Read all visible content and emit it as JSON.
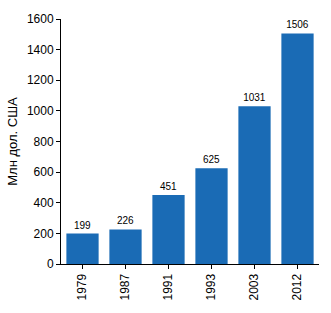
{
  "chart_data": {
    "type": "bar",
    "y_label": "Млн дол. США",
    "categories": [
      "1979",
      "1987",
      "1991",
      "1993",
      "2003",
      "2012"
    ],
    "values": [
      199,
      226,
      451,
      625,
      1031,
      1506
    ],
    "color": "#1a6bb5",
    "ylim": [
      0,
      1600
    ],
    "yticks": [
      0,
      200,
      400,
      600,
      800,
      1000,
      1200,
      1400,
      1600
    ],
    "grid": false,
    "data_labels": true
  }
}
